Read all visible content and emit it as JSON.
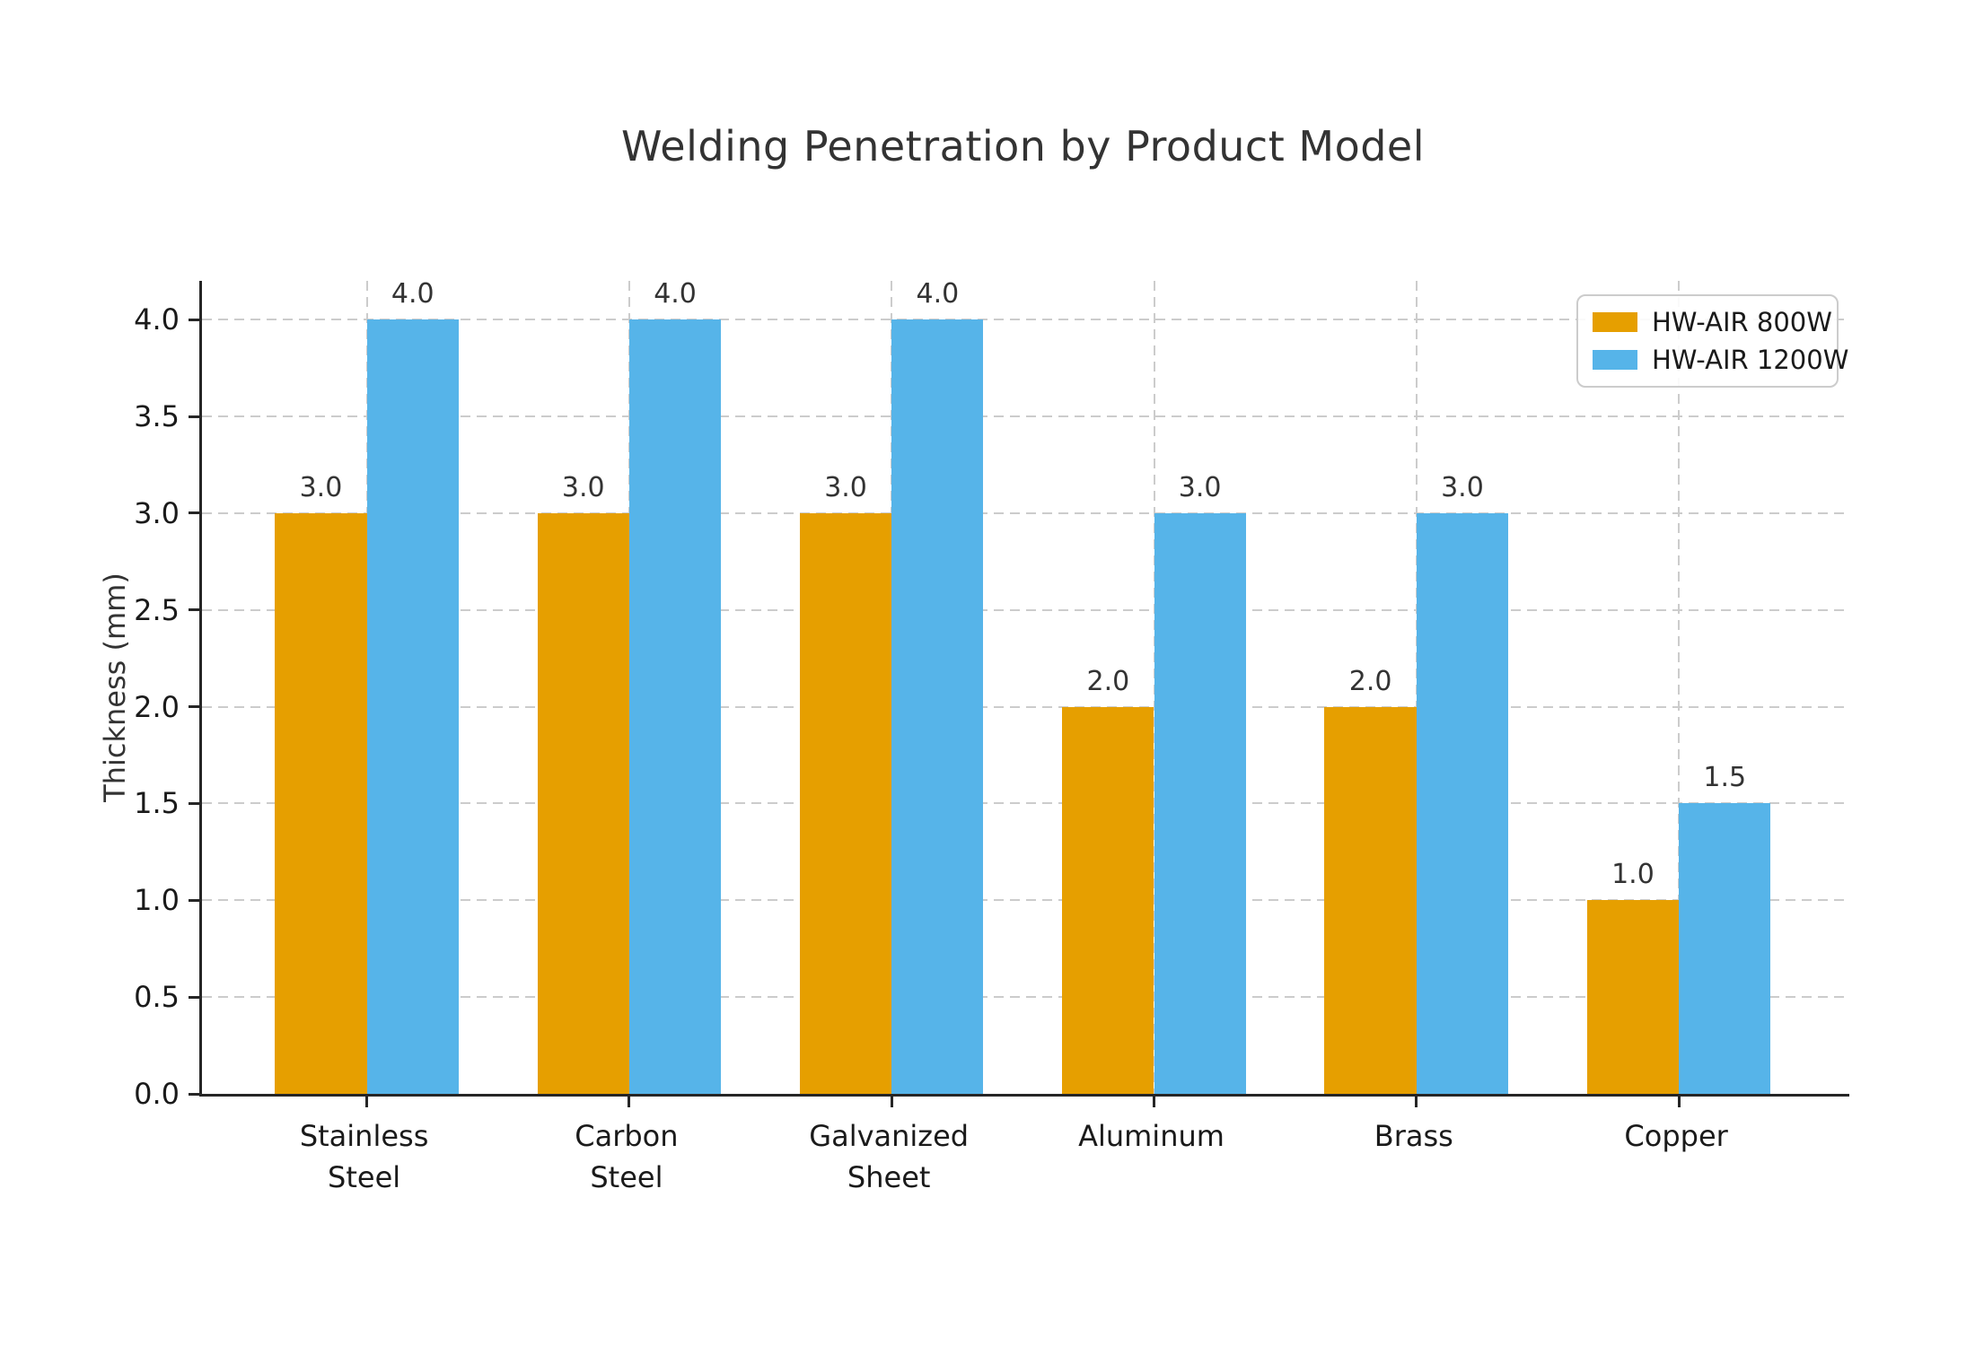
{
  "chart_data": {
    "type": "bar",
    "title": "Welding Penetration by Product Model",
    "xlabel": "",
    "ylabel": "Thickness (mm)",
    "categories": [
      "Stainless Steel",
      "Carbon Steel",
      "Galvanized Sheet",
      "Aluminum",
      "Brass",
      "Copper"
    ],
    "category_label_lines": [
      [
        "Stainless",
        "Steel"
      ],
      [
        "Carbon",
        "Steel"
      ],
      [
        "Galvanized",
        "Sheet"
      ],
      [
        "Aluminum"
      ],
      [
        "Brass"
      ],
      [
        "Copper"
      ]
    ],
    "series": [
      {
        "name": "HW-AIR 800W",
        "color": "#E69F00",
        "values": [
          3.0,
          3.0,
          3.0,
          2.0,
          2.0,
          1.0
        ],
        "value_labels": [
          "3.0",
          "3.0",
          "3.0",
          "2.0",
          "2.0",
          "1.0"
        ]
      },
      {
        "name": "HW-AIR 1200W",
        "color": "#56B4E9",
        "values": [
          4.0,
          4.0,
          4.0,
          3.0,
          3.0,
          1.5
        ],
        "value_labels": [
          "4.0",
          "4.0",
          "4.0",
          "3.0",
          "3.0",
          "1.5"
        ]
      }
    ],
    "yticks": [
      "0.0",
      "0.5",
      "1.0",
      "1.5",
      "2.0",
      "2.5",
      "3.0",
      "3.5",
      "4.0"
    ],
    "ylim": [
      0,
      4.2
    ],
    "bar_width_fraction": 0.35,
    "grid": {
      "style": "dashed",
      "color": "#cccccc",
      "horizontal": true,
      "vertical": true
    },
    "legend": {
      "position": "upper-right",
      "entries": [
        "HW-AIR 800W",
        "HW-AIR 1200W"
      ]
    },
    "colors": {
      "axis": "#262626",
      "text": "#333333",
      "background": "#ffffff"
    }
  }
}
